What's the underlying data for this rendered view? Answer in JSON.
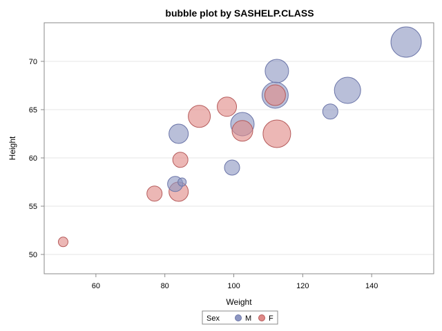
{
  "chart_data": {
    "type": "scatter",
    "subtype": "bubble",
    "title": "bubble plot by SASHELP.CLASS",
    "xlabel": "Weight",
    "ylabel": "Height",
    "xlim": [
      45,
      158
    ],
    "ylim": [
      48,
      74
    ],
    "xticks": [
      60,
      80,
      100,
      120,
      140
    ],
    "yticks": [
      50,
      55,
      60,
      65,
      70
    ],
    "grid": "horizontal",
    "legend": {
      "title": "Sex",
      "placement": "bottom-center",
      "entries": [
        {
          "label": "M",
          "color": "#8e97c2"
        },
        {
          "label": "F",
          "color": "#e08a88"
        }
      ]
    },
    "colors": {
      "M_fill": "#8e97c2",
      "M_stroke": "#6a74a8",
      "F_fill": "#e08a88",
      "F_stroke": "#b55a5a",
      "grid": "#e6e6e6",
      "frame": "#8a8a8a"
    },
    "series": [
      {
        "name": "M",
        "points": [
          {
            "x": 150,
            "y": 72.0,
            "size": 22
          },
          {
            "x": 133,
            "y": 67.0,
            "size": 19
          },
          {
            "x": 112.5,
            "y": 69.0,
            "size": 17
          },
          {
            "x": 112,
            "y": 66.5,
            "size": 19
          },
          {
            "x": 128,
            "y": 64.8,
            "size": 11
          },
          {
            "x": 102.5,
            "y": 63.5,
            "size": 17
          },
          {
            "x": 84,
            "y": 62.5,
            "size": 14
          },
          {
            "x": 99.5,
            "y": 59.0,
            "size": 11
          },
          {
            "x": 83,
            "y": 57.3,
            "size": 11
          },
          {
            "x": 85,
            "y": 57.5,
            "size": 6
          }
        ]
      },
      {
        "name": "F",
        "points": [
          {
            "x": 112.5,
            "y": 62.5,
            "size": 20
          },
          {
            "x": 102.5,
            "y": 62.8,
            "size": 15
          },
          {
            "x": 112,
            "y": 66.5,
            "size": 15
          },
          {
            "x": 98,
            "y": 65.3,
            "size": 14
          },
          {
            "x": 90,
            "y": 64.3,
            "size": 16
          },
          {
            "x": 84.5,
            "y": 59.8,
            "size": 11
          },
          {
            "x": 84,
            "y": 56.5,
            "size": 14
          },
          {
            "x": 77,
            "y": 56.3,
            "size": 11
          },
          {
            "x": 50.5,
            "y": 51.3,
            "size": 7
          }
        ]
      }
    ]
  }
}
